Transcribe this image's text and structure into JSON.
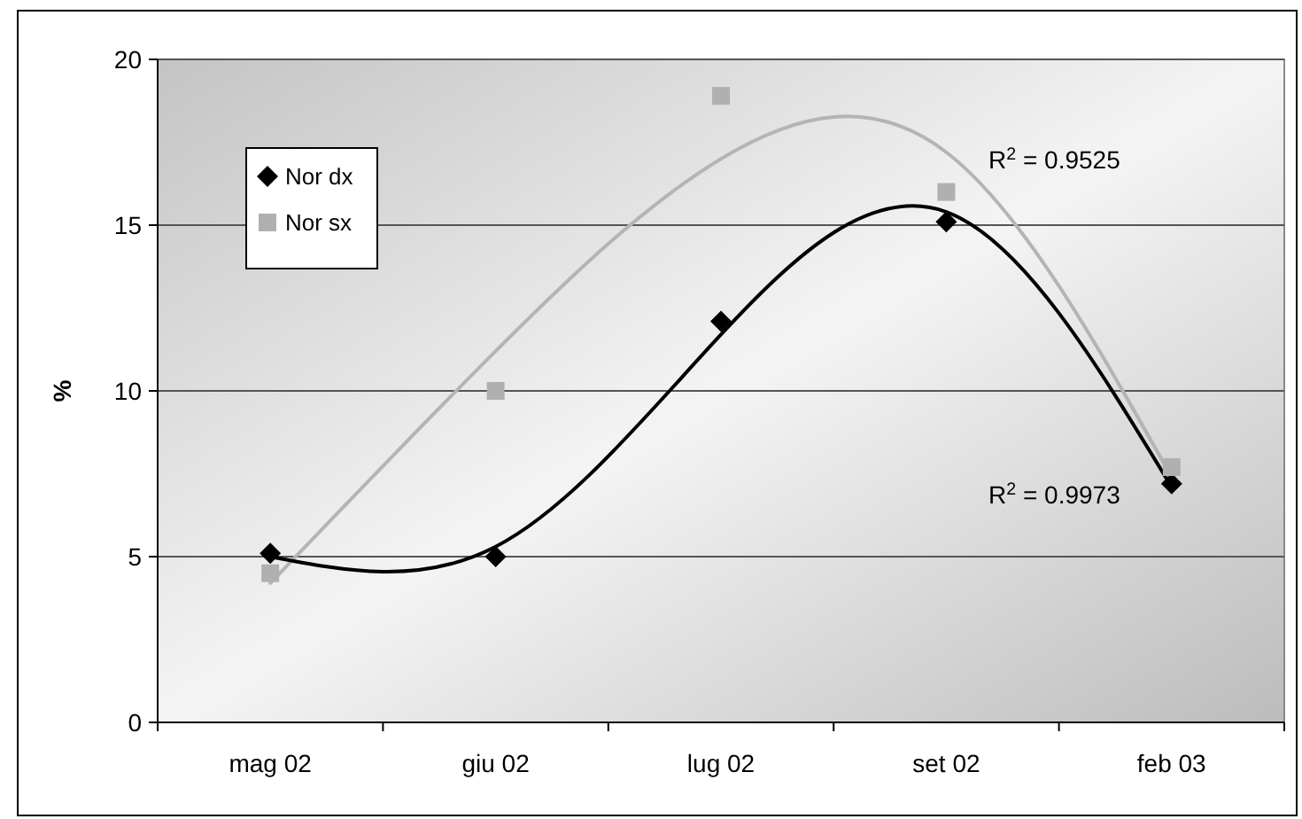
{
  "chart_data": {
    "type": "scatter",
    "ylabel": "%",
    "categories": [
      "mag 02",
      "giu 02",
      "lug 02",
      "set 02",
      "feb 03"
    ],
    "ylim": [
      0,
      20
    ],
    "yticks": [
      0,
      5,
      10,
      15,
      20
    ],
    "grid": "y",
    "legend": "top left",
    "series": [
      {
        "name": "Nor dx",
        "color": "#000000",
        "marker": "diamond",
        "values": [
          5.1,
          5.0,
          12.1,
          15.1,
          7.2
        ]
      },
      {
        "name": "Nor sx",
        "color": "#b0b0b0",
        "marker": "square",
        "values": [
          4.5,
          10.0,
          18.9,
          16.0,
          7.7
        ]
      },
      {
        "type": "line",
        "color": "#b4b4b4",
        "marker": "none",
        "values": [
          4.2,
          11.2,
          17.0,
          17.2,
          7.4
        ]
      },
      {
        "type": "line",
        "color": "#000000",
        "marker": "none",
        "values": [
          5.0,
          5.3,
          11.7,
          15.4,
          7.1
        ]
      }
    ],
    "annotations": [
      "R$^{2}$ = 0.9525",
      "R$^{2}$ = 0.9973"
    ]
  }
}
